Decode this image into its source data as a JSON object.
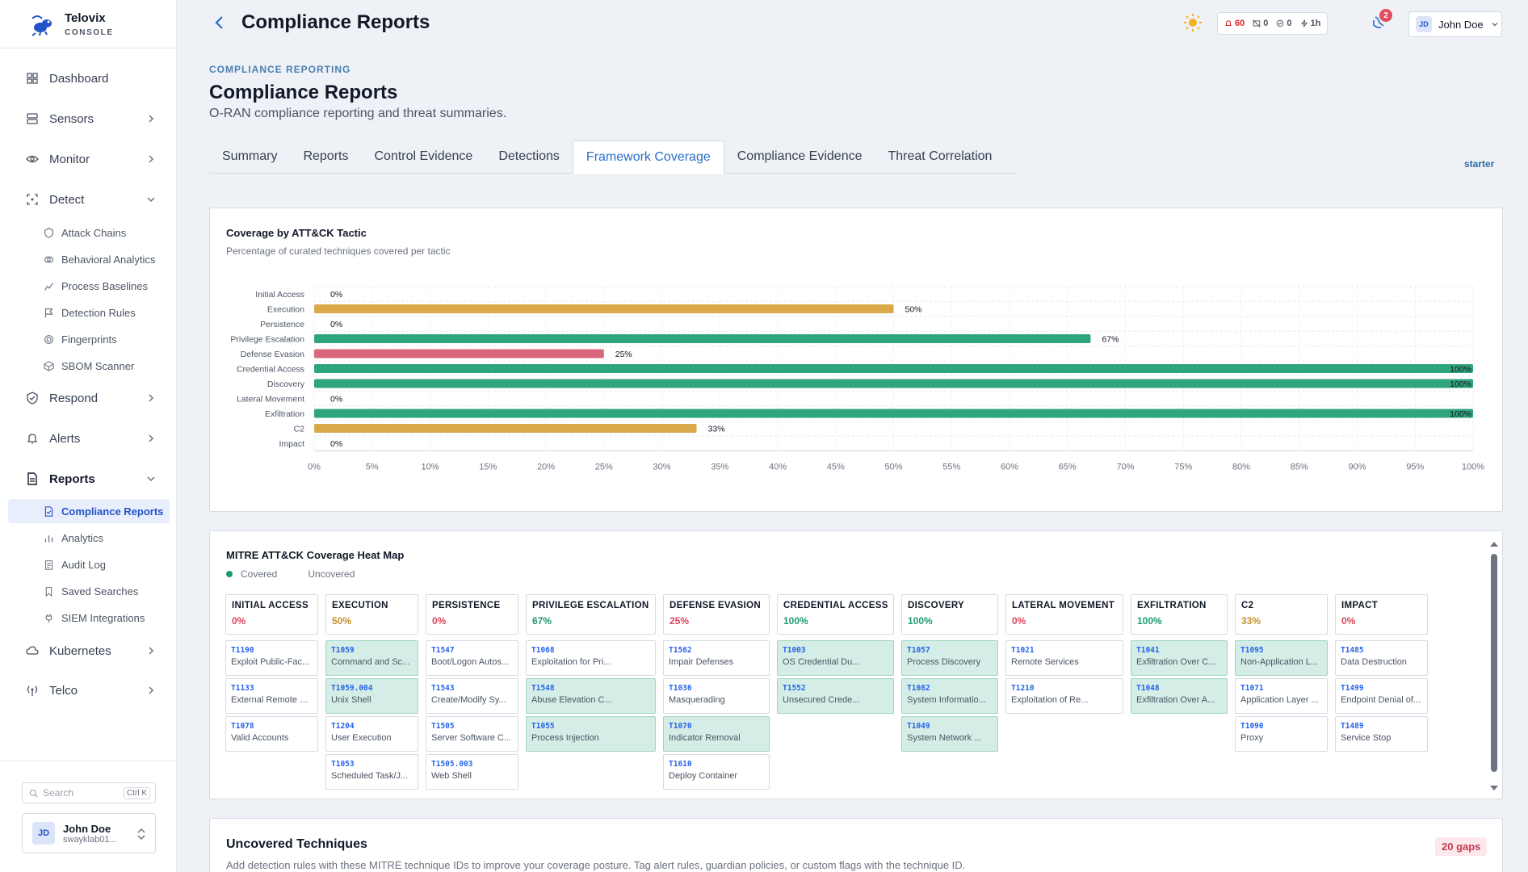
{
  "brand": {
    "name": "Telovix",
    "sub": "CONSOLE"
  },
  "sidebar": {
    "items": [
      {
        "label": "Dashboard"
      },
      {
        "label": "Sensors"
      },
      {
        "label": "Monitor"
      },
      {
        "label": "Detect"
      },
      {
        "label": "Respond"
      },
      {
        "label": "Alerts"
      },
      {
        "label": "Reports"
      },
      {
        "label": "Kubernetes"
      },
      {
        "label": "Telco"
      }
    ],
    "detect_sub": [
      "Attack Chains",
      "Behavioral Analytics",
      "Process Baselines",
      "Detection Rules",
      "Fingerprints",
      "SBOM Scanner"
    ],
    "reports_sub": [
      "Compliance Reports",
      "Analytics",
      "Audit Log",
      "Saved Searches",
      "SIEM Integrations"
    ],
    "search_placeholder": "Search",
    "search_kbd": "Ctrl K",
    "user": {
      "name": "John Doe",
      "email": "swayklab01...",
      "initials": "JD"
    }
  },
  "topbar": {
    "title": "Compliance Reports",
    "stats": {
      "alerts": "60",
      "sensors": "0",
      "checks": "0",
      "window": "1h"
    },
    "notifications": "2",
    "user": {
      "name": "John Doe",
      "initials": "JD"
    }
  },
  "page": {
    "eyebrow": "COMPLIANCE REPORTING",
    "title": "Compliance Reports",
    "subtitle": "O-RAN compliance reporting and threat summaries.",
    "tabs": [
      "Summary",
      "Reports",
      "Control Evidence",
      "Detections",
      "Framework Coverage",
      "Compliance Evidence",
      "Threat Correlation"
    ],
    "active_tab": "Framework Coverage",
    "plan": "starter"
  },
  "coverage_card": {
    "title": "Coverage by ATT&CK Tactic",
    "desc": "Percentage of curated techniques covered per tactic"
  },
  "chart_data": {
    "type": "bar",
    "orientation": "horizontal",
    "title": "Coverage by ATT&CK Tactic",
    "subtitle": "Percentage of curated techniques covered per tactic",
    "categories": [
      "Initial Access",
      "Execution",
      "Persistence",
      "Privilege Escalation",
      "Defense Evasion",
      "Credential Access",
      "Discovery",
      "Lateral Movement",
      "Exfiltration",
      "C2",
      "Impact"
    ],
    "values": [
      0,
      50,
      0,
      67,
      25,
      100,
      100,
      0,
      100,
      33,
      0
    ],
    "value_labels": [
      "0%",
      "50%",
      "0%",
      "67%",
      "25%",
      "100%",
      "100%",
      "0%",
      "100%",
      "33%",
      "0%"
    ],
    "xlim": [
      0,
      100
    ],
    "xticks": [
      "0%",
      "5%",
      "10%",
      "15%",
      "20%",
      "25%",
      "30%",
      "35%",
      "40%",
      "45%",
      "50%",
      "55%",
      "60%",
      "65%",
      "70%",
      "75%",
      "80%",
      "85%",
      "90%",
      "95%",
      "100%"
    ],
    "grid": true,
    "colors": {
      "high": "#2ea57c",
      "mid": "#d9a94a",
      "low": "#d9667a"
    }
  },
  "heatmap": {
    "title": "MITRE ATT&CK Coverage Heat Map",
    "legend_covered": "Covered",
    "legend_uncovered": "Uncovered",
    "columns": [
      {
        "name": "INITIAL ACCESS",
        "pct": "0%",
        "color": "#dc4459",
        "techs": [
          {
            "id": "T1190",
            "name": "Exploit Public-Fac...",
            "covered": false
          },
          {
            "id": "T1133",
            "name": "External Remote S...",
            "covered": false
          },
          {
            "id": "T1078",
            "name": "Valid Accounts",
            "covered": false
          }
        ]
      },
      {
        "name": "EXECUTION",
        "pct": "50%",
        "color": "#c9902a",
        "techs": [
          {
            "id": "T1059",
            "name": "Command and Sc...",
            "covered": true
          },
          {
            "id": "T1059.004",
            "name": "Unix Shell",
            "covered": true
          },
          {
            "id": "T1204",
            "name": "User Execution",
            "covered": false
          },
          {
            "id": "T1053",
            "name": "Scheduled Task/J...",
            "covered": false
          }
        ]
      },
      {
        "name": "PERSISTENCE",
        "pct": "0%",
        "color": "#dc4459",
        "techs": [
          {
            "id": "T1547",
            "name": "Boot/Logon Autos...",
            "covered": false
          },
          {
            "id": "T1543",
            "name": "Create/Modify Sy...",
            "covered": false
          },
          {
            "id": "T1505",
            "name": "Server Software C...",
            "covered": false
          },
          {
            "id": "T1505.003",
            "name": "Web Shell",
            "covered": false
          }
        ]
      },
      {
        "name": "PRIVILEGE ESCALATION",
        "pct": "67%",
        "color": "#1e9b6c",
        "techs": [
          {
            "id": "T1068",
            "name": "Exploitation for Pri...",
            "covered": false
          },
          {
            "id": "T1548",
            "name": "Abuse Elevation C...",
            "covered": true
          },
          {
            "id": "T1055",
            "name": "Process Injection",
            "covered": true
          }
        ]
      },
      {
        "name": "DEFENSE EVASION",
        "pct": "25%",
        "color": "#dc4459",
        "techs": [
          {
            "id": "T1562",
            "name": "Impair Defenses",
            "covered": false
          },
          {
            "id": "T1036",
            "name": "Masquerading",
            "covered": false
          },
          {
            "id": "T1070",
            "name": "Indicator Removal",
            "covered": true
          },
          {
            "id": "T1610",
            "name": "Deploy Container",
            "covered": false
          }
        ]
      },
      {
        "name": "CREDENTIAL ACCESS",
        "pct": "100%",
        "color": "#1e9b6c",
        "techs": [
          {
            "id": "T1003",
            "name": "OS Credential Du...",
            "covered": true
          },
          {
            "id": "T1552",
            "name": "Unsecured Crede...",
            "covered": true
          }
        ]
      },
      {
        "name": "DISCOVERY",
        "pct": "100%",
        "color": "#1e9b6c",
        "techs": [
          {
            "id": "T1057",
            "name": "Process Discovery",
            "covered": true
          },
          {
            "id": "T1082",
            "name": "System Informatio...",
            "covered": true
          },
          {
            "id": "T1049",
            "name": "System Network ...",
            "covered": true
          }
        ]
      },
      {
        "name": "LATERAL MOVEMENT",
        "pct": "0%",
        "color": "#dc4459",
        "techs": [
          {
            "id": "T1021",
            "name": "Remote Services",
            "covered": false
          },
          {
            "id": "T1210",
            "name": "Exploitation of Re...",
            "covered": false
          }
        ]
      },
      {
        "name": "EXFILTRATION",
        "pct": "100%",
        "color": "#1e9b6c",
        "techs": [
          {
            "id": "T1041",
            "name": "Exfiltration Over C...",
            "covered": true
          },
          {
            "id": "T1048",
            "name": "Exfiltration Over A...",
            "covered": true
          }
        ]
      },
      {
        "name": "C2",
        "pct": "33%",
        "color": "#c9902a",
        "techs": [
          {
            "id": "T1095",
            "name": "Non-Application L...",
            "covered": true
          },
          {
            "id": "T1071",
            "name": "Application Layer ...",
            "covered": false
          },
          {
            "id": "T1090",
            "name": "Proxy",
            "covered": false
          }
        ]
      },
      {
        "name": "IMPACT",
        "pct": "0%",
        "color": "#dc4459",
        "techs": [
          {
            "id": "T1485",
            "name": "Data Destruction",
            "covered": false
          },
          {
            "id": "T1499",
            "name": "Endpoint Denial of...",
            "covered": false
          },
          {
            "id": "T1489",
            "name": "Service Stop",
            "covered": false
          }
        ]
      }
    ]
  },
  "uncovered": {
    "title": "Uncovered Techniques",
    "gaps": "20 gaps",
    "desc": "Add detection rules with these MITRE technique IDs to improve your coverage posture. Tag alert rules, guardian policies, or custom flags with the technique ID."
  }
}
